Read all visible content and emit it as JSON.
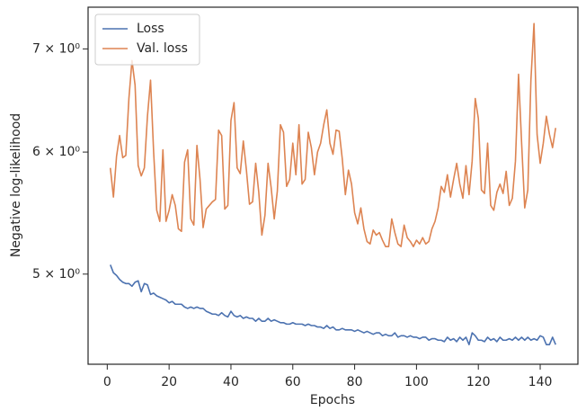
{
  "chart_data": {
    "type": "line",
    "xlabel": "Epochs",
    "ylabel": "Negative log-likelihood",
    "x": [
      1,
      2,
      3,
      4,
      5,
      6,
      7,
      8,
      9,
      10,
      11,
      12,
      13,
      14,
      15,
      16,
      17,
      18,
      19,
      20,
      21,
      22,
      23,
      24,
      25,
      26,
      27,
      28,
      29,
      30,
      31,
      32,
      33,
      34,
      35,
      36,
      37,
      38,
      39,
      40,
      41,
      42,
      43,
      44,
      45,
      46,
      47,
      48,
      49,
      50,
      51,
      52,
      53,
      54,
      55,
      56,
      57,
      58,
      59,
      60,
      61,
      62,
      63,
      64,
      65,
      66,
      67,
      68,
      69,
      70,
      71,
      72,
      73,
      74,
      75,
      76,
      77,
      78,
      79,
      80,
      81,
      82,
      83,
      84,
      85,
      86,
      87,
      88,
      89,
      90,
      91,
      92,
      93,
      94,
      95,
      96,
      97,
      98,
      99,
      100,
      101,
      102,
      103,
      104,
      105,
      106,
      107,
      108,
      109,
      110,
      111,
      112,
      113,
      114,
      115,
      116,
      117,
      118,
      119,
      120,
      121,
      122,
      123,
      124,
      125,
      126,
      127,
      128,
      129,
      130,
      131,
      132,
      133,
      134,
      135,
      136,
      137,
      138,
      139,
      140,
      141,
      142,
      143,
      144,
      145
    ],
    "series": [
      {
        "name": "Loss",
        "color": "#4c72b0",
        "values": [
          5.07,
          5.01,
          4.99,
          4.96,
          4.94,
          4.93,
          4.93,
          4.91,
          4.94,
          4.95,
          4.87,
          4.93,
          4.92,
          4.85,
          4.86,
          4.84,
          4.83,
          4.82,
          4.81,
          4.79,
          4.8,
          4.78,
          4.78,
          4.78,
          4.76,
          4.75,
          4.76,
          4.75,
          4.76,
          4.75,
          4.75,
          4.73,
          4.72,
          4.71,
          4.71,
          4.7,
          4.72,
          4.7,
          4.69,
          4.73,
          4.7,
          4.69,
          4.7,
          4.68,
          4.69,
          4.68,
          4.68,
          4.66,
          4.68,
          4.66,
          4.66,
          4.68,
          4.66,
          4.67,
          4.66,
          4.65,
          4.65,
          4.64,
          4.64,
          4.65,
          4.64,
          4.64,
          4.64,
          4.63,
          4.64,
          4.63,
          4.63,
          4.62,
          4.62,
          4.61,
          4.63,
          4.61,
          4.62,
          4.6,
          4.6,
          4.61,
          4.6,
          4.6,
          4.6,
          4.59,
          4.6,
          4.59,
          4.58,
          4.59,
          4.58,
          4.57,
          4.58,
          4.58,
          4.56,
          4.57,
          4.56,
          4.56,
          4.58,
          4.55,
          4.56,
          4.56,
          4.55,
          4.56,
          4.55,
          4.55,
          4.54,
          4.55,
          4.55,
          4.53,
          4.54,
          4.54,
          4.53,
          4.53,
          4.52,
          4.55,
          4.53,
          4.54,
          4.52,
          4.55,
          4.53,
          4.55,
          4.5,
          4.58,
          4.56,
          4.53,
          4.53,
          4.52,
          4.55,
          4.53,
          4.54,
          4.52,
          4.55,
          4.53,
          4.53,
          4.54,
          4.53,
          4.55,
          4.53,
          4.55,
          4.53,
          4.55,
          4.53,
          4.54,
          4.53,
          4.56,
          4.55,
          4.5,
          4.5,
          4.55,
          4.5
        ]
      },
      {
        "name": "Val. loss",
        "color": "#dd8452",
        "values": [
          5.86,
          5.61,
          5.96,
          6.15,
          5.95,
          5.97,
          6.5,
          6.88,
          6.63,
          5.88,
          5.79,
          5.86,
          6.33,
          6.68,
          6.0,
          5.5,
          5.41,
          6.02,
          5.41,
          5.5,
          5.63,
          5.54,
          5.35,
          5.33,
          5.91,
          6.02,
          5.43,
          5.38,
          6.06,
          5.76,
          5.36,
          5.51,
          5.54,
          5.57,
          5.59,
          6.2,
          6.15,
          5.51,
          5.54,
          6.29,
          6.46,
          5.86,
          5.81,
          6.1,
          5.84,
          5.55,
          5.57,
          5.9,
          5.65,
          5.3,
          5.46,
          5.9,
          5.69,
          5.43,
          5.66,
          6.25,
          6.18,
          5.7,
          5.76,
          6.08,
          5.8,
          6.25,
          5.72,
          5.76,
          6.18,
          6.04,
          5.8,
          6.0,
          6.08,
          6.25,
          6.39,
          6.08,
          5.98,
          6.2,
          6.19,
          5.94,
          5.63,
          5.84,
          5.72,
          5.48,
          5.39,
          5.52,
          5.35,
          5.25,
          5.23,
          5.34,
          5.3,
          5.32,
          5.26,
          5.21,
          5.21,
          5.43,
          5.32,
          5.23,
          5.21,
          5.38,
          5.28,
          5.25,
          5.21,
          5.26,
          5.23,
          5.28,
          5.23,
          5.25,
          5.35,
          5.41,
          5.52,
          5.7,
          5.65,
          5.8,
          5.61,
          5.76,
          5.9,
          5.72,
          5.6,
          5.88,
          5.63,
          5.92,
          6.5,
          6.31,
          5.67,
          5.64,
          6.08,
          5.54,
          5.5,
          5.65,
          5.72,
          5.64,
          5.83,
          5.54,
          5.6,
          5.92,
          6.74,
          6.08,
          5.52,
          5.67,
          6.68,
          7.27,
          6.16,
          5.9,
          6.08,
          6.33,
          6.16,
          6.04,
          6.22
        ]
      }
    ],
    "xlim": [
      -6.2,
      152.2
    ],
    "xticks": [
      0,
      20,
      40,
      60,
      80,
      100,
      120,
      140
    ],
    "ylim": [
      4.37,
      7.45
    ],
    "ylog": true,
    "yticks": [
      {
        "value": 5,
        "label": "5 × 10⁰"
      },
      {
        "value": 6,
        "label": "6 × 10⁰"
      },
      {
        "value": 7,
        "label": "7 × 10⁰"
      }
    ],
    "legend": "upper left"
  }
}
